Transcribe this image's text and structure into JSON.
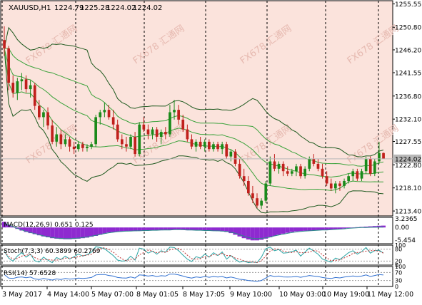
{
  "chart_data": {
    "type": "candlestick",
    "symbol": "XAUUSD,H1",
    "ohlc_header": [
      "1224.79",
      "1225.28",
      "1224.02",
      "1224.02"
    ],
    "last_price": "1224.02",
    "y_ticks": [
      "1255.55",
      "1250.80",
      "1246.20",
      "1241.55",
      "1236.80",
      "1232.10",
      "1227.55",
      "1222.80",
      "1218.10",
      "1213.40"
    ],
    "ylim": [
      1212.4,
      1256.2
    ],
    "x_labels": [
      "3 May 2017",
      "4 May 14:00",
      "5 May 07:00",
      "8 May 01:05",
      "8 May 17:05",
      "9 May 10:00",
      "10 May 03:00",
      "10 May 19:00",
      "11 May 12:00"
    ],
    "candles": [
      [
        1248.2,
        1251.0,
        1245.0,
        1246.5
      ],
      [
        1246.5,
        1247.0,
        1238.0,
        1239.5
      ],
      [
        1239.5,
        1241.0,
        1236.5,
        1237.5
      ],
      [
        1237.5,
        1240.5,
        1236.0,
        1239.8
      ],
      [
        1239.8,
        1241.5,
        1238.0,
        1240.2
      ],
      [
        1240.2,
        1241.0,
        1237.5,
        1238.2
      ],
      [
        1238.2,
        1240.0,
        1236.5,
        1239.0
      ],
      [
        1239.0,
        1239.5,
        1234.0,
        1234.8
      ],
      [
        1234.8,
        1236.0,
        1232.0,
        1232.5
      ],
      [
        1232.5,
        1234.0,
        1230.5,
        1233.5
      ],
      [
        1233.5,
        1234.5,
        1230.0,
        1230.8
      ],
      [
        1230.8,
        1232.0,
        1227.0,
        1227.5
      ],
      [
        1227.5,
        1230.5,
        1226.5,
        1229.0
      ],
      [
        1229.0,
        1230.0,
        1226.0,
        1227.0
      ],
      [
        1227.0,
        1229.0,
        1226.5,
        1228.0
      ],
      [
        1228.0,
        1228.5,
        1225.5,
        1226.5
      ],
      [
        1226.5,
        1227.5,
        1225.0,
        1226.0
      ],
      [
        1226.0,
        1227.5,
        1225.5,
        1227.0
      ],
      [
        1227.0,
        1227.5,
        1225.5,
        1226.2
      ],
      [
        1226.2,
        1227.0,
        1225.5,
        1226.5
      ],
      [
        1226.5,
        1227.5,
        1226.0,
        1227.0
      ],
      [
        1227.0,
        1233.0,
        1226.5,
        1232.5
      ],
      [
        1232.5,
        1234.0,
        1231.0,
        1233.5
      ],
      [
        1233.5,
        1235.5,
        1232.5,
        1234.0
      ],
      [
        1234.0,
        1235.0,
        1232.0,
        1232.5
      ],
      [
        1232.5,
        1234.0,
        1230.0,
        1231.0
      ],
      [
        1231.0,
        1232.0,
        1227.5,
        1228.0
      ],
      [
        1228.0,
        1229.0,
        1226.0,
        1227.0
      ],
      [
        1227.0,
        1228.5,
        1225.5,
        1226.5
      ],
      [
        1226.5,
        1229.0,
        1226.0,
        1228.5
      ],
      [
        1228.5,
        1229.5,
        1224.5,
        1225.0
      ],
      [
        1225.0,
        1231.5,
        1224.5,
        1231.0
      ],
      [
        1231.0,
        1232.5,
        1229.5,
        1230.0
      ],
      [
        1230.0,
        1231.0,
        1228.0,
        1229.0
      ],
      [
        1229.0,
        1230.5,
        1228.0,
        1230.0
      ],
      [
        1230.0,
        1230.5,
        1227.5,
        1228.5
      ],
      [
        1228.5,
        1230.0,
        1227.0,
        1229.5
      ],
      [
        1229.5,
        1230.5,
        1228.0,
        1229.0
      ],
      [
        1229.0,
        1235.0,
        1228.5,
        1233.5
      ],
      [
        1233.5,
        1236.0,
        1232.0,
        1234.0
      ],
      [
        1234.0,
        1235.0,
        1231.0,
        1232.0
      ],
      [
        1232.0,
        1233.0,
        1229.5,
        1230.0
      ],
      [
        1230.0,
        1231.0,
        1227.5,
        1228.0
      ],
      [
        1228.0,
        1229.0,
        1226.0,
        1226.5
      ],
      [
        1226.5,
        1228.0,
        1225.5,
        1227.5
      ],
      [
        1227.5,
        1228.5,
        1226.0,
        1226.5
      ],
      [
        1226.5,
        1228.0,
        1225.5,
        1227.5
      ],
      [
        1227.5,
        1228.0,
        1225.5,
        1226.0
      ],
      [
        1226.0,
        1227.5,
        1225.5,
        1227.0
      ],
      [
        1227.0,
        1227.5,
        1225.5,
        1226.0
      ],
      [
        1226.0,
        1227.5,
        1225.0,
        1227.0
      ],
      [
        1227.0,
        1227.5,
        1224.0,
        1224.5
      ],
      [
        1224.5,
        1226.0,
        1223.5,
        1225.5
      ],
      [
        1225.5,
        1226.0,
        1222.5,
        1223.0
      ],
      [
        1223.0,
        1224.0,
        1220.0,
        1220.5
      ],
      [
        1220.5,
        1222.0,
        1218.5,
        1219.5
      ],
      [
        1219.5,
        1220.5,
        1216.5,
        1217.0
      ],
      [
        1217.0,
        1218.5,
        1215.0,
        1216.0
      ],
      [
        1216.0,
        1217.0,
        1214.0,
        1214.5
      ],
      [
        1214.5,
        1216.0,
        1213.8,
        1215.5
      ],
      [
        1215.5,
        1219.5,
        1215.0,
        1219.0
      ],
      [
        1219.0,
        1224.5,
        1218.5,
        1223.5
      ],
      [
        1223.5,
        1225.0,
        1221.5,
        1222.0
      ],
      [
        1222.0,
        1223.5,
        1221.0,
        1223.0
      ],
      [
        1223.0,
        1223.5,
        1220.5,
        1221.5
      ],
      [
        1221.5,
        1222.5,
        1220.5,
        1221.0
      ],
      [
        1221.0,
        1222.0,
        1220.5,
        1221.5
      ],
      [
        1221.5,
        1223.0,
        1220.5,
        1222.5
      ],
      [
        1222.5,
        1223.0,
        1220.0,
        1220.5
      ],
      [
        1220.5,
        1222.5,
        1220.0,
        1222.0
      ],
      [
        1222.0,
        1224.5,
        1221.5,
        1224.0
      ],
      [
        1224.0,
        1225.0,
        1222.5,
        1223.0
      ],
      [
        1223.0,
        1224.0,
        1221.5,
        1222.0
      ],
      [
        1222.0,
        1223.0,
        1220.0,
        1220.5
      ],
      [
        1220.5,
        1221.5,
        1218.5,
        1219.0
      ],
      [
        1219.0,
        1220.0,
        1217.5,
        1218.0
      ],
      [
        1218.0,
        1219.5,
        1217.0,
        1219.0
      ],
      [
        1219.0,
        1219.5,
        1217.5,
        1218.5
      ],
      [
        1218.5,
        1220.0,
        1218.0,
        1219.5
      ],
      [
        1219.5,
        1221.0,
        1219.0,
        1220.5
      ],
      [
        1220.5,
        1222.0,
        1219.5,
        1221.5
      ],
      [
        1221.5,
        1222.0,
        1219.5,
        1220.0
      ],
      [
        1220.0,
        1222.0,
        1219.5,
        1221.5
      ],
      [
        1221.5,
        1224.5,
        1221.0,
        1224.0
      ],
      [
        1224.0,
        1224.5,
        1220.5,
        1221.0
      ],
      [
        1221.0,
        1224.0,
        1220.5,
        1223.5
      ],
      [
        1223.5,
        1227.5,
        1223.0,
        1225.2
      ],
      [
        1225.2,
        1225.3,
        1224.0,
        1224.0
      ]
    ],
    "macd": {
      "label": "MACD(12,26,9) 0.651 0.125",
      "y_ticks": [
        "3.2365",
        "0.00",
        "-5.454"
      ],
      "ylim": [
        -5.8,
        3.6
      ],
      "histogram": [
        2.0,
        1.0,
        0.3,
        -0.5,
        -1.1,
        -1.6,
        -2.0,
        -2.4,
        -2.8,
        -3.2,
        -3.5,
        -3.8,
        -4.0,
        -4.1,
        -4.2,
        -4.2,
        -4.1,
        -4.0,
        -3.8,
        -3.6,
        -3.3,
        -3.0,
        -2.6,
        -2.2,
        -1.8,
        -1.6,
        -1.5,
        -1.4,
        -1.4,
        -1.3,
        -1.3,
        -1.2,
        -1.2,
        -1.1,
        -1.1,
        -1.0,
        -1.0,
        -0.9,
        -0.9,
        -0.8,
        -0.8,
        -0.9,
        -1.0,
        -1.0,
        -1.1,
        -1.1,
        -1.1,
        -1.2,
        -1.2,
        -1.3,
        -1.4,
        -1.6,
        -2.0,
        -2.6,
        -3.2,
        -3.8,
        -4.3,
        -4.6,
        -4.6,
        -4.4,
        -4.0,
        -3.5,
        -3.0,
        -2.6,
        -2.2,
        -1.9,
        -1.6,
        -1.4,
        -1.3,
        -1.2,
        -1.2,
        -1.1,
        -1.0,
        -0.9,
        -0.9,
        -0.8,
        -0.7,
        -0.6,
        -0.4,
        -0.2,
        0.0,
        0.1,
        0.2,
        0.3,
        0.4,
        0.5,
        0.6,
        0.65
      ],
      "signal": [
        1.5,
        0.9,
        0.3,
        -0.3,
        -0.9,
        -1.4,
        -1.8,
        -2.2,
        -2.6,
        -3.0,
        -3.3,
        -3.6,
        -3.8,
        -3.9,
        -4.0,
        -4.0,
        -3.9,
        -3.8,
        -3.6,
        -3.4,
        -3.1,
        -2.8,
        -2.5,
        -2.2,
        -1.9,
        -1.7,
        -1.5,
        -1.4,
        -1.3,
        -1.3,
        -1.2,
        -1.2,
        -1.1,
        -1.1,
        -1.0,
        -1.0,
        -0.9,
        -0.9,
        -0.9,
        -0.8,
        -0.8,
        -0.8,
        -0.9,
        -0.9,
        -1.0,
        -1.0,
        -1.1,
        -1.1,
        -1.2,
        -1.2,
        -1.3,
        -1.4,
        -1.7,
        -2.1,
        -2.6,
        -3.1,
        -3.6,
        -3.9,
        -4.0,
        -3.9,
        -3.7,
        -3.4,
        -3.0,
        -2.7,
        -2.4,
        -2.1,
        -1.8,
        -1.6,
        -1.4,
        -1.3,
        -1.2,
        -1.1,
        -1.0,
        -0.9,
        -0.9,
        -0.8,
        -0.7,
        -0.6,
        -0.5,
        -0.3,
        -0.2,
        -0.1,
        0.0,
        0.0,
        0.05,
        0.08,
        0.1,
        0.125
      ]
    },
    "stoch": {
      "label": "Stoch(7,3,3) 60.3899 60.2769",
      "y_ticks": [
        "100",
        "80",
        "20",
        "0"
      ],
      "ylim": [
        0,
        100
      ],
      "k": [
        70,
        35,
        20,
        45,
        62,
        40,
        55,
        22,
        15,
        40,
        25,
        12,
        38,
        28,
        45,
        30,
        42,
        55,
        45,
        52,
        65,
        92,
        88,
        82,
        65,
        48,
        25,
        20,
        22,
        45,
        25,
        85,
        80,
        60,
        70,
        55,
        72,
        65,
        90,
        88,
        72,
        50,
        30,
        18,
        42,
        35,
        55,
        40,
        62,
        48,
        66,
        30,
        48,
        28,
        15,
        20,
        12,
        15,
        12,
        40,
        82,
        90,
        72,
        78,
        60,
        62,
        68,
        75,
        45,
        65,
        85,
        70,
        55,
        30,
        22,
        15,
        35,
        28,
        45,
        62,
        72,
        55,
        68,
        88,
        60,
        72,
        75,
        60
      ],
      "d": [
        65,
        45,
        30,
        33,
        45,
        50,
        52,
        38,
        28,
        28,
        28,
        25,
        25,
        28,
        35,
        35,
        38,
        42,
        47,
        50,
        54,
        70,
        82,
        87,
        78,
        65,
        46,
        31,
        22,
        29,
        30,
        52,
        63,
        75,
        70,
        62,
        66,
        64,
        76,
        81,
        83,
        70,
        50,
        32,
        30,
        32,
        44,
        43,
        52,
        50,
        59,
        48,
        48,
        35,
        30,
        21,
        16,
        15,
        13,
        22,
        45,
        70,
        81,
        80,
        70,
        66,
        63,
        68,
        62,
        62,
        65,
        73,
        70,
        52,
        36,
        22,
        24,
        26,
        36,
        45,
        59,
        63,
        65,
        70,
        72,
        73,
        69,
        60
      ]
    },
    "rsi": {
      "label": "RSI(14) 57.6528",
      "y_ticks": [
        "100",
        "70",
        "30",
        "0"
      ],
      "ylim": [
        0,
        100
      ],
      "values": [
        60,
        42,
        40,
        46,
        48,
        44,
        47,
        38,
        35,
        40,
        36,
        32,
        38,
        35,
        40,
        37,
        39,
        42,
        40,
        42,
        45,
        58,
        60,
        60,
        55,
        52,
        45,
        43,
        42,
        48,
        42,
        58,
        56,
        52,
        55,
        50,
        54,
        52,
        62,
        62,
        58,
        52,
        46,
        42,
        48,
        45,
        50,
        46,
        50,
        47,
        50,
        43,
        47,
        42,
        36,
        34,
        30,
        28,
        26,
        30,
        42,
        55,
        50,
        52,
        48,
        47,
        48,
        50,
        46,
        50,
        55,
        52,
        50,
        45,
        42,
        40,
        45,
        43,
        47,
        50,
        53,
        50,
        52,
        58,
        50,
        55,
        60,
        57.65
      ]
    }
  },
  "watermark": "FX678 汇通网"
}
